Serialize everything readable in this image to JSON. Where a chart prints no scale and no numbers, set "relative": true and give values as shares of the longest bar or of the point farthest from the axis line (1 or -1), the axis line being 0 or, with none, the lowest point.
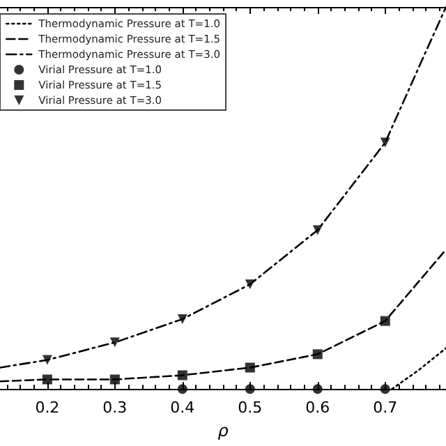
{
  "chart_data": {
    "type": "line",
    "xlabel": "ρ",
    "relative": true,
    "xlim": [
      0.13,
      0.79
    ],
    "xticks": [
      0.2,
      0.3,
      0.4,
      0.5,
      0.6,
      0.7
    ],
    "grid": false,
    "legend": "top left",
    "series": [
      {
        "name": "Thermodynamic Pressure at T=1.0",
        "type": "line",
        "line_style": "dotted",
        "marker": "none",
        "color": "#000000",
        "x": [
          0.71,
          0.75,
          0.79
        ],
        "values": [
          0,
          0.05,
          0.107
        ]
      },
      {
        "name": "Thermodynamic Pressure at T=1.5",
        "type": "line",
        "line_style": "dashed",
        "marker": "none",
        "color": "#000000",
        "x": [
          0.13,
          0.2,
          0.3,
          0.4,
          0.5,
          0.6,
          0.7,
          0.79
        ],
        "values": [
          0.02,
          0.025,
          0.025,
          0.036,
          0.056,
          0.091,
          0.178,
          0.365
        ]
      },
      {
        "name": "Thermodynamic Pressure at T=3.0",
        "type": "line",
        "line_style": "dashdot",
        "marker": "none",
        "color": "#000000",
        "x": [
          0.13,
          0.2,
          0.3,
          0.4,
          0.5,
          0.6,
          0.7,
          0.75,
          0.79
        ],
        "values": [
          0.056,
          0.076,
          0.122,
          0.183,
          0.274,
          0.416,
          0.645,
          0.843,
          1.0
        ]
      },
      {
        "name": "Virial Pressure at T=1.0",
        "type": "scatter",
        "marker": "circle",
        "color": "#000000",
        "x": [
          0.4,
          0.5,
          0.6,
          0.7
        ],
        "values": [
          0,
          0,
          0,
          0
        ]
      },
      {
        "name": "Virial Pressure at T=1.5",
        "type": "scatter",
        "marker": "square",
        "color": "#000000",
        "x": [
          0.2,
          0.3,
          0.4,
          0.5,
          0.6,
          0.7
        ],
        "values": [
          0.025,
          0.025,
          0.036,
          0.056,
          0.091,
          0.178
        ]
      },
      {
        "name": "Virial Pressure at T=3.0",
        "type": "scatter",
        "marker": "triangle-down",
        "color": "#000000",
        "x": [
          0.2,
          0.3,
          0.4,
          0.5,
          0.6,
          0.7
        ],
        "values": [
          0.076,
          0.122,
          0.183,
          0.274,
          0.416,
          0.645
        ]
      }
    ]
  }
}
